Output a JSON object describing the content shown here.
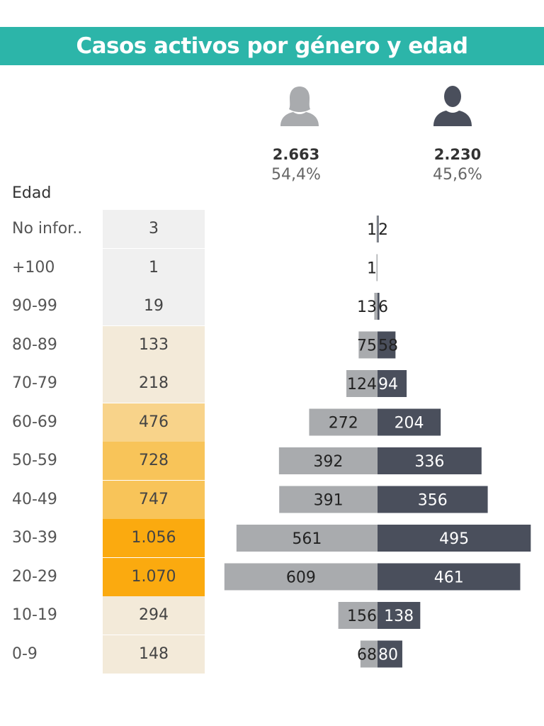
{
  "title": "Casos activos por género y edad",
  "header": {
    "female": {
      "icon": "female-person-icon",
      "total": "2.663",
      "percent": "54,4%"
    },
    "male": {
      "icon": "male-person-icon",
      "total": "2.230",
      "percent": "45,6%"
    },
    "age_label": "Edad"
  },
  "colors": {
    "title_bg": "#2cb5a9",
    "female_bar": "#a9abae",
    "male_bar": "#4a4f5c",
    "total_scale": [
      "#f0f0f0",
      "#f3ead9",
      "#f8d38a",
      "#f8c459",
      "#fbaa0f"
    ]
  },
  "chart_data": {
    "type": "bar",
    "subtype": "population-pyramid",
    "title": "Casos activos por género y edad",
    "categories": [
      "No infor..",
      "+100",
      "90-99",
      "80-89",
      "70-79",
      "60-69",
      "50-59",
      "40-49",
      "30-39",
      "20-29",
      "10-19",
      "0-9"
    ],
    "totals": [
      "3",
      "1",
      "19",
      "133",
      "218",
      "476",
      "728",
      "747",
      "1.056",
      "1.070",
      "294",
      "148"
    ],
    "total_color_index": [
      0,
      0,
      0,
      1,
      1,
      2,
      3,
      3,
      4,
      4,
      1,
      1
    ],
    "series": [
      {
        "name": "Mujeres",
        "values": [
          1,
          1,
          13,
          75,
          124,
          272,
          392,
          391,
          561,
          609,
          156,
          68
        ]
      },
      {
        "name": "Hombres",
        "values": [
          2,
          null,
          6,
          58,
          94,
          204,
          336,
          356,
          495,
          461,
          138,
          80
        ]
      }
    ]
  }
}
